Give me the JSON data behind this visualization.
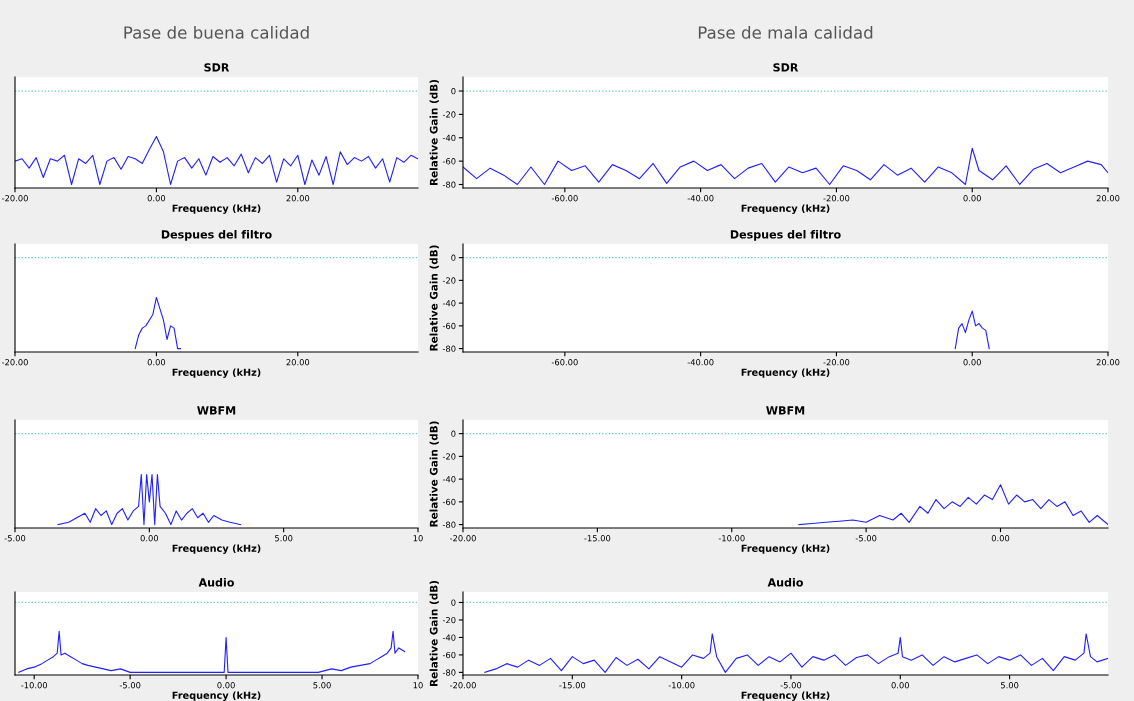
{
  "chart_data": [
    {
      "type": "line",
      "title": "SDR",
      "xlabel": "Frequency (kHz)",
      "annotations": [
        "Pase de buena calidad"
      ],
      "tick_labels": "x",
      "xlim": [
        -20,
        37
      ],
      "ylim": [
        -83,
        12
      ],
      "yticks": [
        0,
        -20,
        -40,
        -60,
        -80
      ],
      "xticks": [
        {
          "value": -20,
          "label": "-20.00"
        },
        {
          "value": 0,
          "label": "0.00"
        },
        {
          "value": 20,
          "label": "20.00"
        }
      ],
      "ref_lines": [
        {
          "axis": "y",
          "value": 0,
          "color": "#5bc8c8",
          "line_style": "dotted"
        }
      ],
      "series": [
        {
          "color": "#2020ff",
          "x": [
            -20,
            -19,
            -18,
            -17,
            -16,
            -15,
            -14,
            -13,
            -12,
            -11,
            -10,
            -9,
            -8,
            -7,
            -6,
            -5,
            -4,
            -3,
            -2,
            -1,
            0,
            1,
            2,
            3,
            4,
            5,
            6,
            7,
            8,
            9,
            10,
            11,
            12,
            13,
            14,
            15,
            16,
            17,
            18,
            19,
            20,
            21,
            22,
            23,
            24,
            25,
            26,
            27,
            28,
            29,
            30,
            31,
            32,
            33,
            34,
            35,
            36,
            37
          ],
          "values": [
            -60,
            -58,
            -66,
            -57,
            -74,
            -58,
            -60,
            -55,
            -80,
            -58,
            -62,
            -55,
            -80,
            -60,
            -57,
            -67,
            -56,
            -58,
            -62,
            -50,
            -39,
            -52,
            -80,
            -60,
            -57,
            -66,
            -58,
            -72,
            -56,
            -61,
            -57,
            -64,
            -54,
            -70,
            -57,
            -62,
            -55,
            -78,
            -58,
            -64,
            -55,
            -80,
            -59,
            -72,
            -56,
            -80,
            -52,
            -63,
            -57,
            -60,
            -56,
            -66,
            -58,
            -78,
            -57,
            -61,
            -55,
            -58
          ]
        }
      ]
    },
    {
      "type": "line",
      "title": "SDR",
      "xlabel": "Frequency (kHz)",
      "ylabel": "Relative Gain (dB)",
      "annotations": [
        "Pase de mala calidad"
      ],
      "xlim": [
        -75,
        20
      ],
      "ylim": [
        -83,
        12
      ],
      "yticks": [
        0,
        -20,
        -40,
        -60,
        -80
      ],
      "xticks": [
        {
          "value": -60,
          "label": "-60.00"
        },
        {
          "value": -40,
          "label": "-40.00"
        },
        {
          "value": -20,
          "label": "-20.00"
        },
        {
          "value": 0,
          "label": "0.00"
        },
        {
          "value": 20,
          "label": "20.00"
        }
      ],
      "ref_lines": [
        {
          "axis": "y",
          "value": 0,
          "color": "#5bc8c8",
          "line_style": "dotted"
        }
      ],
      "series": [
        {
          "color": "#2020ff",
          "x": [
            -75,
            -73,
            -71,
            -69,
            -67,
            -65,
            -63,
            -61,
            -59,
            -57,
            -55,
            -53,
            -51,
            -49,
            -47,
            -45,
            -43,
            -41,
            -39,
            -37,
            -35,
            -33,
            -31,
            -29,
            -27,
            -25,
            -23,
            -21,
            -19,
            -17,
            -15,
            -13,
            -11,
            -9,
            -7,
            -5,
            -3,
            -1,
            0,
            1,
            3,
            5,
            7,
            9,
            11,
            13,
            15,
            17,
            19,
            20
          ],
          "values": [
            -65,
            -75,
            -66,
            -72,
            -80,
            -65,
            -80,
            -60,
            -68,
            -64,
            -78,
            -63,
            -68,
            -75,
            -62,
            -79,
            -65,
            -60,
            -68,
            -63,
            -75,
            -66,
            -62,
            -78,
            -65,
            -70,
            -66,
            -80,
            -64,
            -68,
            -76,
            -63,
            -72,
            -66,
            -78,
            -65,
            -70,
            -80,
            -49,
            -68,
            -76,
            -64,
            -80,
            -67,
            -62,
            -70,
            -65,
            -60,
            -63,
            -70
          ]
        }
      ]
    },
    {
      "type": "line",
      "title": "Despues del filtro",
      "xlabel": "Frequency (kHz)",
      "tick_labels": "x",
      "xlim": [
        -20,
        37
      ],
      "ylim": [
        -83,
        12
      ],
      "yticks": [
        0,
        -20,
        -40,
        -60,
        -80
      ],
      "xticks": [
        {
          "value": -20,
          "label": "-20.00"
        },
        {
          "value": 0,
          "label": "0.00"
        },
        {
          "value": 20,
          "label": "20.00"
        }
      ],
      "ref_lines": [
        {
          "axis": "y",
          "value": 0,
          "color": "#5bc8c8",
          "line_style": "dotted"
        }
      ],
      "series": [
        {
          "color": "#2020ff",
          "x": [
            -3,
            -2.5,
            -2,
            -1.5,
            -1,
            -0.5,
            0,
            0.5,
            1,
            1.5,
            2,
            2.5,
            3,
            3.4
          ],
          "values": [
            -80,
            -68,
            -62,
            -60,
            -55,
            -50,
            -35,
            -45,
            -55,
            -72,
            -60,
            -62,
            -80,
            -80
          ]
        }
      ]
    },
    {
      "type": "line",
      "title": "Despues del filtro",
      "xlabel": "Frequency (kHz)",
      "ylabel": "Relative Gain (dB)",
      "xlim": [
        -75,
        20
      ],
      "ylim": [
        -83,
        12
      ],
      "yticks": [
        0,
        -20,
        -40,
        -60,
        -80
      ],
      "xticks": [
        {
          "value": -60,
          "label": "-60.00"
        },
        {
          "value": -40,
          "label": "-40.00"
        },
        {
          "value": -20,
          "label": "-20.00"
        },
        {
          "value": 0,
          "label": "0.00"
        },
        {
          "value": 20,
          "label": "20.00"
        }
      ],
      "ref_lines": [
        {
          "axis": "y",
          "value": 0,
          "color": "#5bc8c8",
          "line_style": "dotted"
        }
      ],
      "series": [
        {
          "color": "#2020ff",
          "x": [
            -2.5,
            -2,
            -1.5,
            -1,
            -0.5,
            0,
            0.5,
            1,
            1.5,
            2,
            2.5
          ],
          "values": [
            -80,
            -62,
            -58,
            -66,
            -55,
            -47,
            -60,
            -58,
            -62,
            -64,
            -80
          ]
        }
      ]
    },
    {
      "type": "line",
      "title": "WBFM",
      "xlabel": "Frequency (kHz)",
      "tick_labels": "x",
      "xlim": [
        -5,
        10
      ],
      "ylim": [
        -83,
        12
      ],
      "yticks": [
        0,
        -20,
        -40,
        -60,
        -80
      ],
      "xticks": [
        {
          "value": -5,
          "label": "-5.00"
        },
        {
          "value": 0,
          "label": "0.00"
        },
        {
          "value": 5,
          "label": "5.00"
        },
        {
          "value": 10,
          "label": "10"
        }
      ],
      "ref_lines": [
        {
          "axis": "y",
          "value": 0,
          "color": "#5bc8c8",
          "line_style": "dotted"
        }
      ],
      "series": [
        {
          "color": "#2020ff",
          "x": [
            -3.4,
            -3,
            -2.7,
            -2.4,
            -2.2,
            -2,
            -1.8,
            -1.6,
            -1.4,
            -1.2,
            -1,
            -0.8,
            -0.6,
            -0.4,
            -0.3,
            -0.2,
            -0.1,
            0,
            0.1,
            0.2,
            0.3,
            0.4,
            0.6,
            0.8,
            1,
            1.2,
            1.4,
            1.6,
            1.8,
            2,
            2.2,
            2.4,
            2.7,
            3,
            3.4
          ],
          "values": [
            -80,
            -78,
            -74,
            -70,
            -78,
            -66,
            -72,
            -68,
            -80,
            -70,
            -66,
            -76,
            -68,
            -64,
            -36,
            -80,
            -36,
            -60,
            -36,
            -80,
            -36,
            -64,
            -70,
            -80,
            -68,
            -76,
            -70,
            -66,
            -74,
            -70,
            -78,
            -72,
            -76,
            -78,
            -80
          ]
        }
      ]
    },
    {
      "type": "line",
      "title": "WBFM",
      "xlabel": "Frequency (kHz)",
      "ylabel": "Relative Gain (dB)",
      "xlim": [
        -20,
        4
      ],
      "ylim": [
        -83,
        12
      ],
      "yticks": [
        0,
        -20,
        -40,
        -60,
        -80
      ],
      "xticks": [
        {
          "value": -20,
          "label": "-20.00"
        },
        {
          "value": -15,
          "label": "-15.00"
        },
        {
          "value": -10,
          "label": "-10.00"
        },
        {
          "value": -5,
          "label": "-5.00"
        },
        {
          "value": 0,
          "label": "0.00"
        }
      ],
      "ref_lines": [
        {
          "axis": "y",
          "value": 0,
          "color": "#5bc8c8",
          "line_style": "dotted"
        }
      ],
      "series": [
        {
          "color": "#2020ff",
          "x": [
            -7.5,
            -7,
            -6.5,
            -6,
            -5.5,
            -5,
            -4.5,
            -4,
            -3.7,
            -3.4,
            -3,
            -2.7,
            -2.4,
            -2.1,
            -1.8,
            -1.5,
            -1.2,
            -0.9,
            -0.6,
            -0.3,
            0,
            0.3,
            0.6,
            0.9,
            1.2,
            1.5,
            1.8,
            2.1,
            2.4,
            2.7,
            3,
            3.3,
            3.6,
            4
          ],
          "values": [
            -80,
            -79,
            -78,
            -77,
            -76,
            -78,
            -72,
            -76,
            -70,
            -78,
            -64,
            -70,
            -58,
            -66,
            -60,
            -64,
            -56,
            -62,
            -54,
            -58,
            -45,
            -62,
            -54,
            -60,
            -58,
            -66,
            -58,
            -64,
            -60,
            -72,
            -68,
            -78,
            -72,
            -80
          ]
        }
      ]
    },
    {
      "type": "line",
      "title": "Audio",
      "xlabel": "Frequency (kHz)",
      "tick_labels": "x",
      "xlim": [
        -11,
        10
      ],
      "ylim": [
        -83,
        12
      ],
      "yticks": [
        0,
        -20,
        -40,
        -60,
        -80
      ],
      "xticks": [
        {
          "value": -10,
          "label": "-10.00"
        },
        {
          "value": -5,
          "label": "-5.00"
        },
        {
          "value": 0,
          "label": "0.00"
        },
        {
          "value": 5,
          "label": "5.00"
        },
        {
          "value": 10,
          "label": "10"
        }
      ],
      "ref_lines": [
        {
          "axis": "y",
          "value": 0,
          "color": "#5bc8c8",
          "line_style": "dotted"
        }
      ],
      "series": [
        {
          "color": "#2020ff",
          "x": [
            -10.8,
            -10.4,
            -10,
            -9.6,
            -9.3,
            -9,
            -8.8,
            -8.7,
            -8.6,
            -8.4,
            -8.1,
            -7.8,
            -7.5,
            -7.2,
            -6.8,
            -6.4,
            -6,
            -5.5,
            -5,
            -4.8,
            -0.1,
            0,
            0.1,
            4.8,
            5.5,
            6,
            6.5,
            7,
            7.5,
            7.8,
            8.1,
            8.4,
            8.6,
            8.7,
            8.8,
            9,
            9.3
          ],
          "values": [
            -80,
            -76,
            -74,
            -70,
            -66,
            -62,
            -58,
            -33,
            -60,
            -58,
            -62,
            -66,
            -70,
            -72,
            -74,
            -76,
            -78,
            -76,
            -80,
            -80,
            -80,
            -40,
            -80,
            -80,
            -76,
            -78,
            -74,
            -72,
            -70,
            -66,
            -62,
            -58,
            -52,
            -33,
            -58,
            -52,
            -56
          ]
        }
      ]
    },
    {
      "type": "line",
      "title": "Audio",
      "xlabel": "Frequency (kHz)",
      "ylabel": "Relative Gain (dB)",
      "xlim": [
        -20,
        9.5
      ],
      "ylim": [
        -83,
        12
      ],
      "yticks": [
        0,
        -20,
        -40,
        -60,
        -80
      ],
      "xticks": [
        {
          "value": -20,
          "label": "-20.00"
        },
        {
          "value": -15,
          "label": "-15.00"
        },
        {
          "value": -10,
          "label": "-10.00"
        },
        {
          "value": -5,
          "label": "-5.00"
        },
        {
          "value": 0,
          "label": "0.00"
        },
        {
          "value": 5,
          "label": "5.00"
        }
      ],
      "ref_lines": [
        {
          "axis": "y",
          "value": 0,
          "color": "#5bc8c8",
          "line_style": "dotted"
        }
      ],
      "series": [
        {
          "color": "#2020ff",
          "x": [
            -19,
            -18.5,
            -18,
            -17.5,
            -17,
            -16.5,
            -16,
            -15.5,
            -15,
            -14.5,
            -14,
            -13.5,
            -13,
            -12.5,
            -12,
            -11.5,
            -11,
            -10.5,
            -10,
            -9.5,
            -9,
            -8.7,
            -8.6,
            -8.4,
            -8,
            -7.5,
            -7,
            -6.5,
            -6,
            -5.5,
            -5,
            -4.5,
            -4,
            -3.5,
            -3,
            -2.5,
            -2,
            -1.5,
            -1,
            -0.5,
            -0.1,
            0,
            0.1,
            0.5,
            1,
            1.5,
            2,
            2.5,
            3,
            3.5,
            4,
            4.5,
            5,
            5.5,
            6,
            6.5,
            7,
            7.5,
            8,
            8.4,
            8.5,
            8.7,
            9,
            9.5
          ],
          "values": [
            -80,
            -76,
            -70,
            -74,
            -66,
            -72,
            -64,
            -78,
            -62,
            -70,
            -66,
            -80,
            -63,
            -72,
            -65,
            -76,
            -62,
            -68,
            -74,
            -60,
            -64,
            -58,
            -36,
            -62,
            -80,
            -64,
            -60,
            -72,
            -62,
            -68,
            -58,
            -74,
            -62,
            -66,
            -60,
            -72,
            -63,
            -60,
            -70,
            -62,
            -58,
            -40,
            -62,
            -66,
            -60,
            -72,
            -62,
            -68,
            -64,
            -60,
            -70,
            -62,
            -66,
            -60,
            -72,
            -64,
            -78,
            -62,
            -66,
            -58,
            -36,
            -62,
            -68,
            -64
          ]
        }
      ]
    }
  ]
}
